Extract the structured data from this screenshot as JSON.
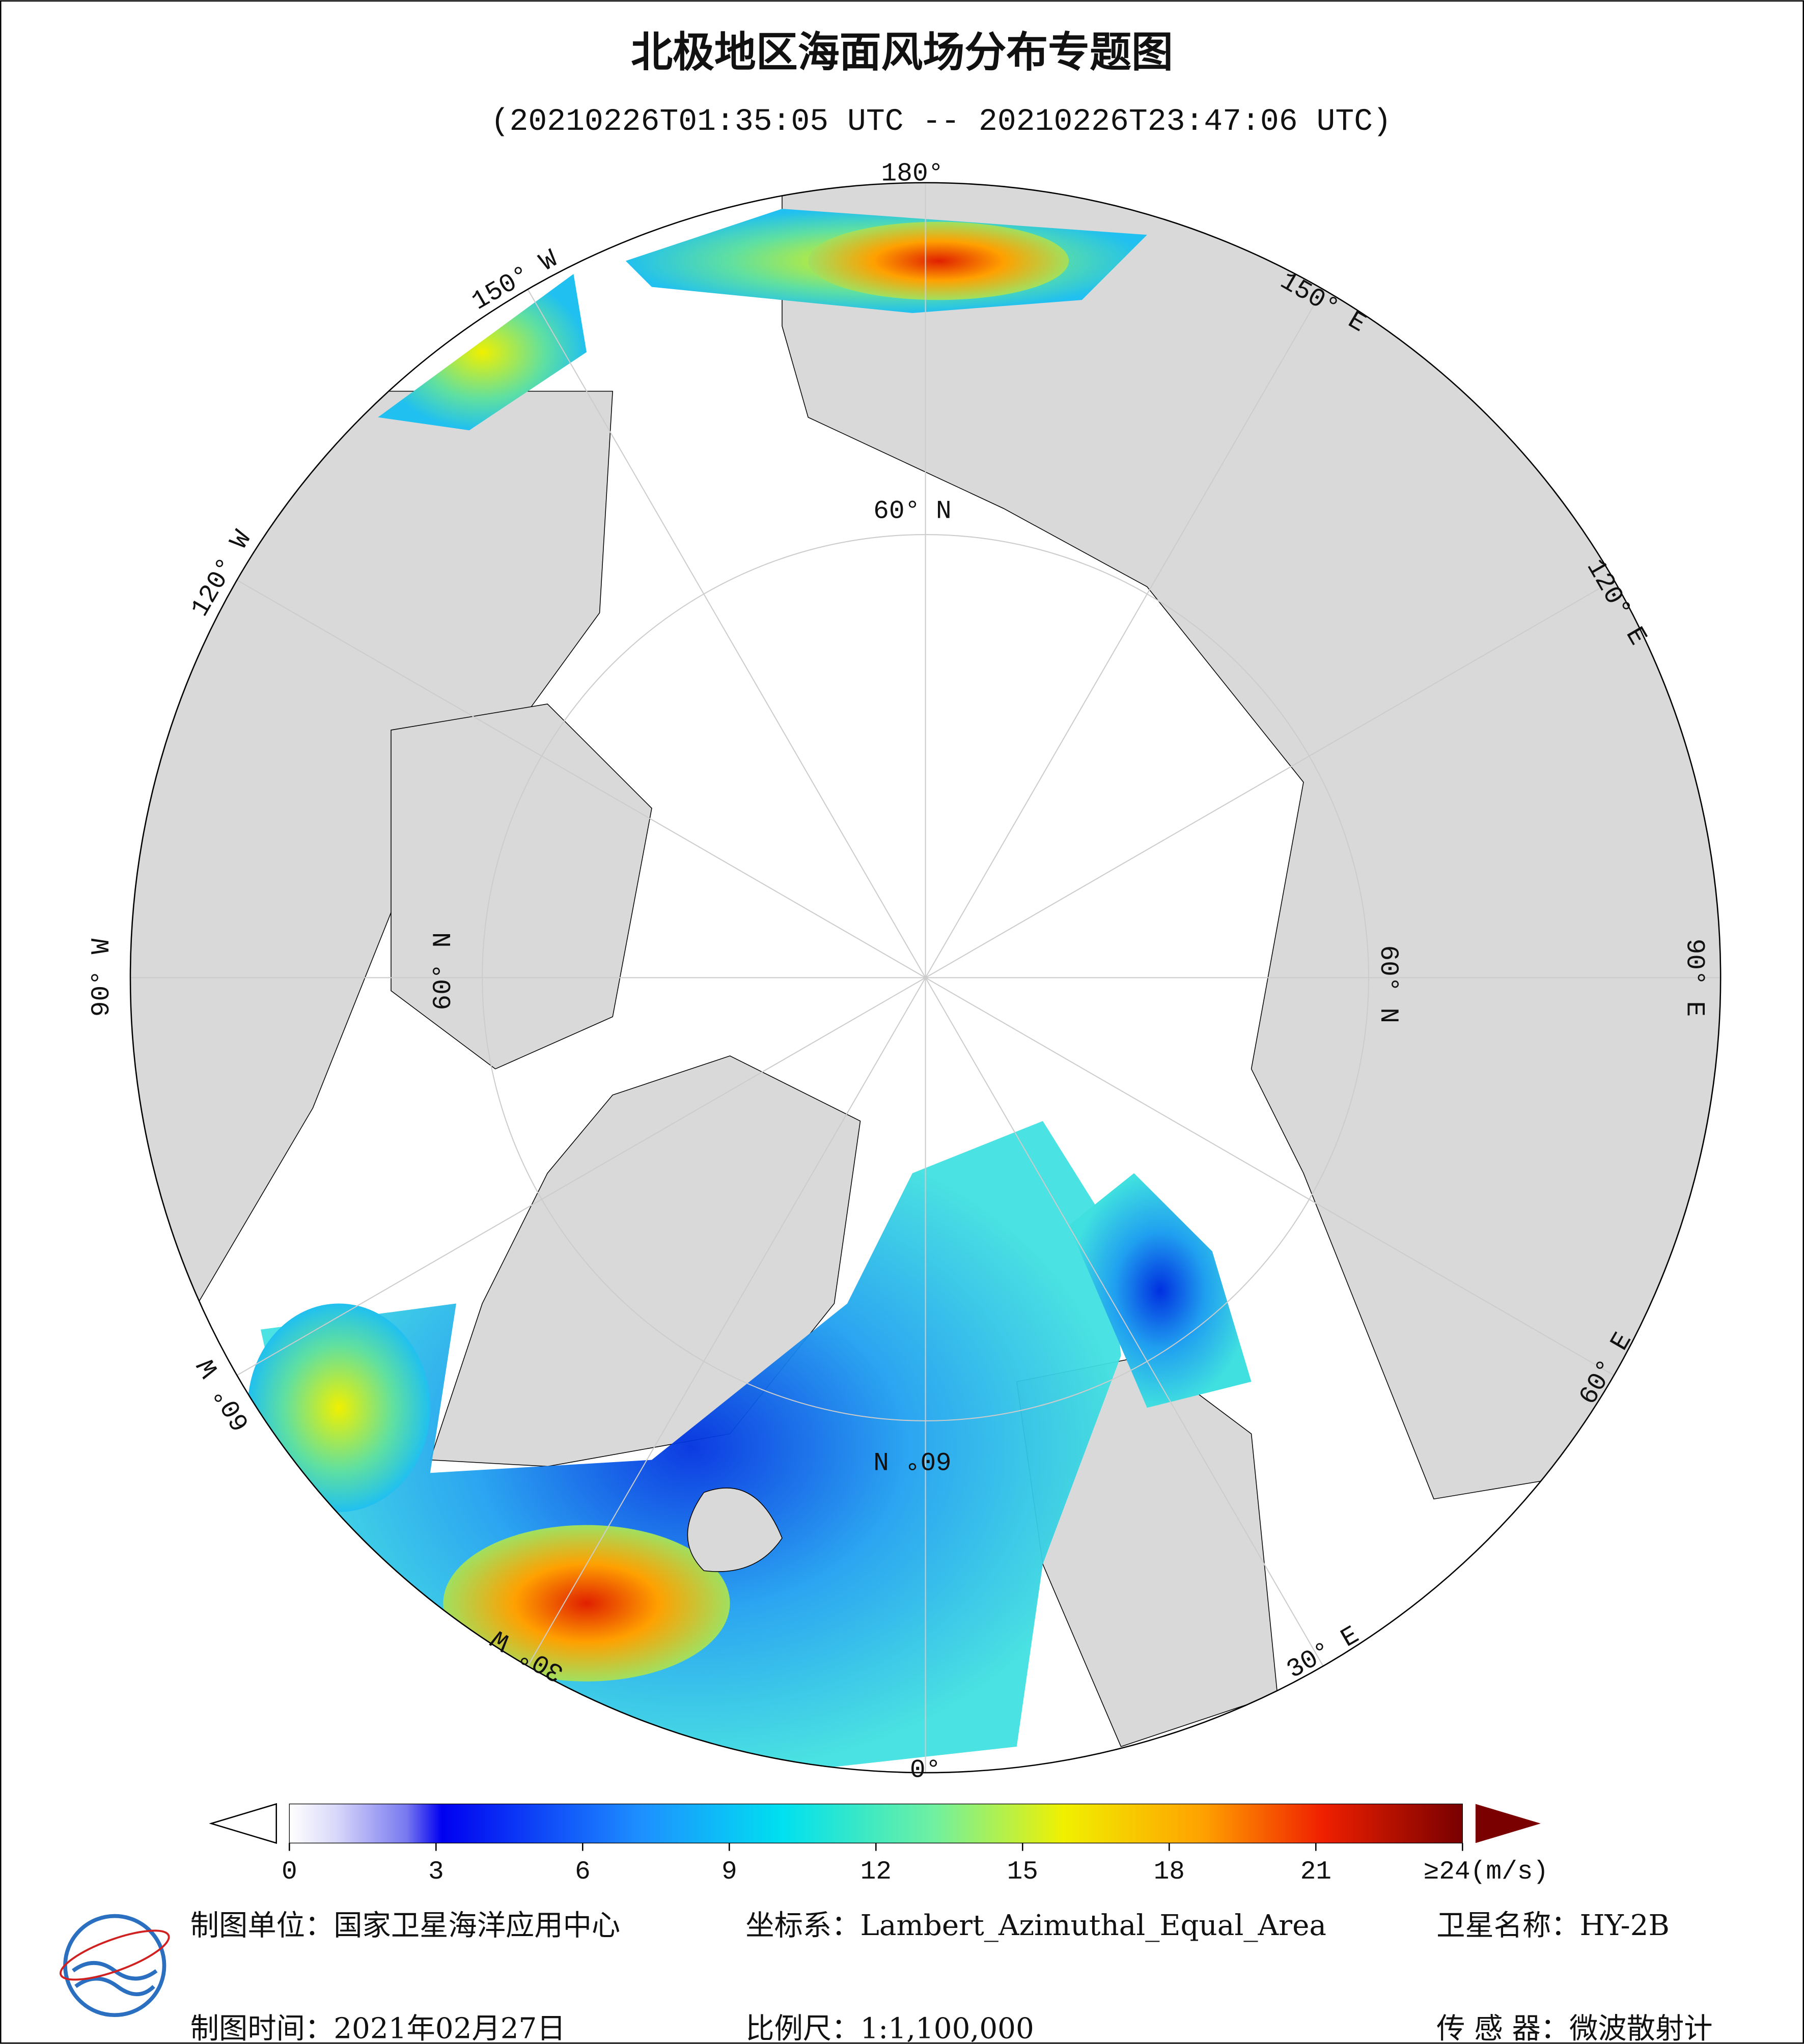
{
  "header": {
    "title": "北极地区海面风场分布专题图",
    "subtitle": "(20210226T01:35:05 UTC -- 20210226T23:47:06 UTC)"
  },
  "map": {
    "labels": {
      "lon180": "180°",
      "lon150e": "150° E",
      "lon120e": "120° E",
      "lon90e": "90° E",
      "lon60e": "60° E",
      "lon30e": "30° E",
      "lon0": "0°",
      "lon30w": "30° W",
      "lon60w": "60° W",
      "lon90w": "90° W",
      "lon120w": "120° W",
      "lon150w": "150° W",
      "lat60top": "60° N",
      "lat60right": "60° N",
      "lat60left": "60° N",
      "lat60bottom": "60° N"
    }
  },
  "colorbar": {
    "range": [
      0,
      24
    ],
    "ticks": [
      0,
      3,
      6,
      9,
      12,
      15,
      18,
      21,
      {
        "value": 24,
        "label": "≥24(m/s)"
      }
    ]
  },
  "footer": {
    "unit": "制图单位：国家卫星海洋应用中心",
    "crs": "坐标系：Lambert_Azimuthal_Equal_Area",
    "satellite": "卫星名称：HY-2B",
    "date": "制图时间：2021年02月27日",
    "scale": "比例尺：1:1,100,000",
    "sensor": "传 感 器：微波散射计"
  }
}
